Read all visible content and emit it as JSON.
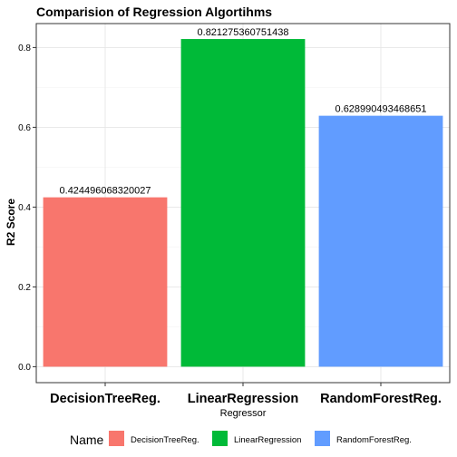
{
  "chart_data": {
    "type": "bar",
    "title": "Comparision of Regression Algortihms",
    "xlabel": "Regressor",
    "ylabel": "R2 Score",
    "categories": [
      "DecisionTreeReg.",
      "LinearRegression",
      "RandomForestReg."
    ],
    "values": [
      0.424496068320027,
      0.821275360751438,
      0.628990493468651
    ],
    "value_labels": [
      "0.424496068320027",
      "0.821275360751438",
      "0.628990493468651"
    ],
    "colors": [
      "#F8766D",
      "#00BA38",
      "#619CFF"
    ],
    "ylim": [
      -0.04,
      0.86
    ],
    "yticks": [
      0,
      0.2,
      0.4,
      0.6,
      0.8
    ],
    "ytick_labels": [
      "0.0",
      "0.2",
      "0.4",
      "0.6",
      "0.8"
    ],
    "grid": true,
    "legend": {
      "title": "Name",
      "position": "bottom",
      "entries": [
        "DecisionTreeReg.",
        "LinearRegression",
        "RandomForestReg."
      ]
    }
  }
}
